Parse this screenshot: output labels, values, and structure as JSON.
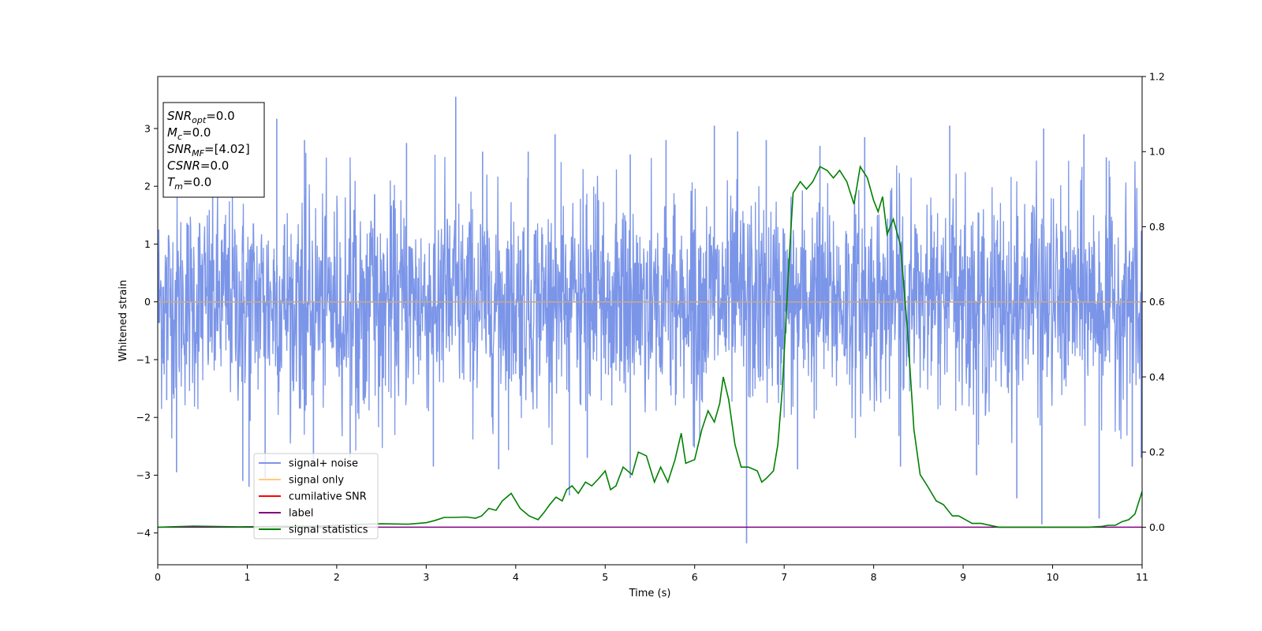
{
  "chart_data": {
    "type": "line",
    "xlabel": "Time (s)",
    "ylabel": "Whitened strain",
    "xlim": [
      0,
      11
    ],
    "ylim": [
      -4.55,
      3.9
    ],
    "y2lim": [
      -0.1,
      1.2
    ],
    "xticks": [
      0,
      1,
      2,
      3,
      4,
      5,
      6,
      7,
      8,
      9,
      10,
      11
    ],
    "yticks": [
      -4,
      -3,
      -2,
      -1,
      0,
      1,
      2,
      3
    ],
    "y2ticks": [
      0.0,
      0.2,
      0.4,
      0.6,
      0.8,
      1.0,
      1.2
    ],
    "grid": false,
    "legend_position": "lower-left",
    "colors": {
      "noise": "#7b95e8",
      "signal_only": "#ffcc80",
      "cumulative_snr": "#ff0000",
      "label": "#800080",
      "signal_statistics": "#008000",
      "signal_only_line": "#c8a888"
    },
    "series": [
      {
        "name": "signal+ noise",
        "axis": "left",
        "description_values": {
          "mean": 0.0,
          "std": 0.9,
          "spikes": [
            [
              0.21,
              -2.95
            ],
            [
              0.1,
              -1.7
            ],
            [
              0.95,
              -3.1
            ],
            [
              1.02,
              -3.2
            ],
            [
              1.2,
              -3.05
            ],
            [
              1.33,
              3.17
            ],
            [
              1.64,
              2.8
            ],
            [
              1.74,
              -2.75
            ],
            [
              2.15,
              -2.7
            ],
            [
              2.78,
              2.75
            ],
            [
              3.08,
              -2.85
            ],
            [
              3.33,
              3.55
            ],
            [
              3.63,
              2.6
            ],
            [
              3.81,
              -2.9
            ],
            [
              4.14,
              2.6
            ],
            [
              4.44,
              2.9
            ],
            [
              4.6,
              -3.35
            ],
            [
              4.8,
              -2.7
            ],
            [
              5.28,
              2.55
            ],
            [
              5.28,
              -3.05
            ],
            [
              5.68,
              2.8
            ],
            [
              6.22,
              3.05
            ],
            [
              6.48,
              2.95
            ],
            [
              6.58,
              -4.18
            ],
            [
              6.8,
              2.8
            ],
            [
              7.15,
              -2.9
            ],
            [
              7.4,
              2.7
            ],
            [
              7.9,
              2.85
            ],
            [
              8.3,
              -2.85
            ],
            [
              8.85,
              3.05
            ],
            [
              9.15,
              -3.0
            ],
            [
              9.6,
              -3.4
            ],
            [
              9.9,
              3.0
            ],
            [
              9.88,
              -3.85
            ],
            [
              10.35,
              2.9
            ],
            [
              10.52,
              -3.75
            ],
            [
              10.6,
              2.5
            ],
            [
              10.89,
              -2.85
            ],
            [
              10.99,
              -2.7
            ]
          ]
        }
      },
      {
        "name": "signal only",
        "axis": "left",
        "x": [
          0,
          11
        ],
        "y": [
          0,
          0
        ]
      },
      {
        "name": "cumilative SNR",
        "axis": "right",
        "x": [],
        "y": []
      },
      {
        "name": "label",
        "axis": "right",
        "x": [
          0,
          11
        ],
        "y": [
          0,
          0
        ]
      },
      {
        "name": "signal statistics",
        "axis": "right",
        "x": [
          0,
          0.4,
          0.9,
          1.3,
          1.8,
          2.2,
          2.5,
          2.8,
          3.0,
          3.1,
          3.2,
          3.3,
          3.45,
          3.55,
          3.62,
          3.7,
          3.78,
          3.85,
          3.95,
          4.05,
          4.15,
          4.25,
          4.32,
          4.38,
          4.45,
          4.52,
          4.57,
          4.63,
          4.7,
          4.78,
          4.85,
          4.93,
          5.0,
          5.06,
          5.12,
          5.2,
          5.3,
          5.37,
          5.46,
          5.55,
          5.62,
          5.7,
          5.78,
          5.85,
          5.9,
          6.0,
          6.08,
          6.15,
          6.22,
          6.28,
          6.32,
          6.38,
          6.45,
          6.52,
          6.6,
          6.7,
          6.75,
          6.8,
          6.88,
          6.93,
          6.98,
          7.05,
          7.1,
          7.18,
          7.25,
          7.32,
          7.4,
          7.48,
          7.55,
          7.62,
          7.7,
          7.78,
          7.85,
          7.93,
          8.0,
          8.05,
          8.1,
          8.15,
          8.22,
          8.3,
          8.38,
          8.45,
          8.52,
          8.6,
          8.7,
          8.78,
          8.88,
          8.95,
          9.1,
          9.2,
          9.4,
          9.7,
          10.0,
          10.2,
          10.4,
          10.55,
          10.62,
          10.7,
          10.78,
          10.85,
          10.92,
          11.0
        ],
        "y": [
          0.0,
          0.003,
          0.001,
          0.002,
          0.003,
          0.007,
          0.009,
          0.008,
          0.012,
          0.018,
          0.026,
          0.026,
          0.027,
          0.024,
          0.03,
          0.05,
          0.045,
          0.07,
          0.09,
          0.05,
          0.03,
          0.02,
          0.04,
          0.06,
          0.08,
          0.07,
          0.1,
          0.11,
          0.09,
          0.12,
          0.11,
          0.13,
          0.15,
          0.1,
          0.11,
          0.16,
          0.14,
          0.2,
          0.19,
          0.12,
          0.16,
          0.12,
          0.18,
          0.25,
          0.17,
          0.18,
          0.26,
          0.31,
          0.28,
          0.33,
          0.4,
          0.34,
          0.22,
          0.16,
          0.16,
          0.15,
          0.12,
          0.13,
          0.15,
          0.22,
          0.37,
          0.69,
          0.89,
          0.92,
          0.9,
          0.92,
          0.96,
          0.95,
          0.93,
          0.95,
          0.92,
          0.86,
          0.96,
          0.93,
          0.87,
          0.84,
          0.88,
          0.78,
          0.82,
          0.75,
          0.52,
          0.26,
          0.14,
          0.11,
          0.07,
          0.06,
          0.03,
          0.03,
          0.01,
          0.01,
          0.0,
          0.0,
          0.0,
          0.0,
          0.0,
          0.002,
          0.005,
          0.005,
          0.015,
          0.02,
          0.035,
          0.095
        ]
      }
    ]
  },
  "legend": {
    "items": [
      {
        "label": "signal+ noise",
        "color": "#7b95e8"
      },
      {
        "label": "signal only",
        "color": "#ffcc80"
      },
      {
        "label": "cumilative SNR",
        "color": "#ff0000"
      },
      {
        "label": "label",
        "color": "#800080"
      },
      {
        "label": "signal statistics",
        "color": "#008000"
      }
    ]
  },
  "stats_box": {
    "lines": [
      {
        "base": "SNR",
        "sub": "opt",
        "value": "=0.0"
      },
      {
        "base": "M",
        "sub": "c",
        "value": "=0.0"
      },
      {
        "base": "SNR",
        "sub": "MF",
        "value": "=[4.02]"
      },
      {
        "base": "CSNR",
        "sub": "",
        "value": "=0.0"
      },
      {
        "base": "T",
        "sub": "m",
        "value": "=0.0"
      }
    ]
  }
}
